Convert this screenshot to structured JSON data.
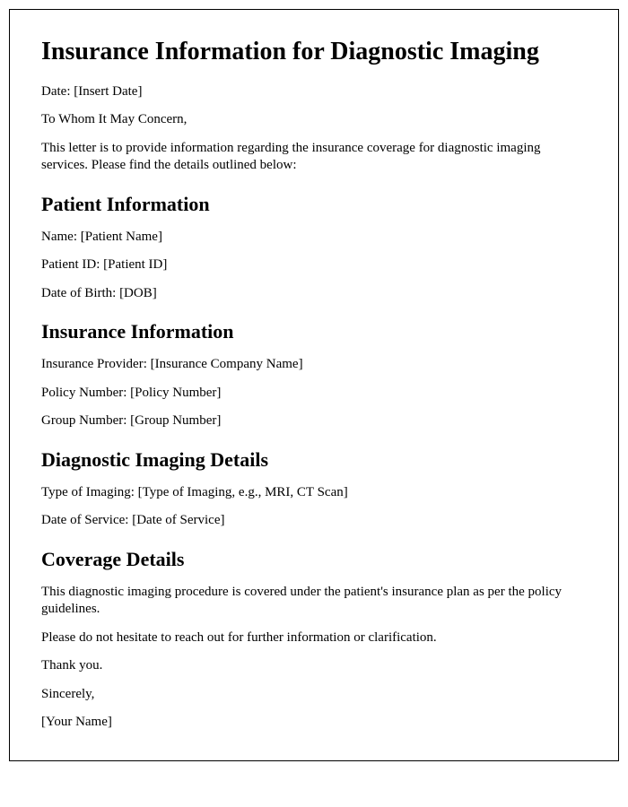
{
  "title": "Insurance Information for Diagnostic Imaging",
  "date_line": "Date: [Insert Date]",
  "salutation": "To Whom It May Concern,",
  "intro": "This letter is to provide information regarding the insurance coverage for diagnostic imaging services. Please find the details outlined below:",
  "patient_section": {
    "heading": "Patient Information",
    "name": "Name: [Patient Name]",
    "patient_id": "Patient ID: [Patient ID]",
    "dob": "Date of Birth: [DOB]"
  },
  "insurance_section": {
    "heading": "Insurance Information",
    "provider": "Insurance Provider: [Insurance Company Name]",
    "policy": "Policy Number: [Policy Number]",
    "group": "Group Number: [Group Number]"
  },
  "imaging_section": {
    "heading": "Diagnostic Imaging Details",
    "type": "Type of Imaging: [Type of Imaging, e.g., MRI, CT Scan]",
    "service_date": "Date of Service: [Date of Service]"
  },
  "coverage_section": {
    "heading": "Coverage Details",
    "body": "This diagnostic imaging procedure is covered under the patient's insurance plan as per the policy guidelines.",
    "contact": "Please do not hesitate to reach out for further information or clarification.",
    "thanks": "Thank you.",
    "closing": "Sincerely,",
    "signature": "[Your Name]"
  }
}
